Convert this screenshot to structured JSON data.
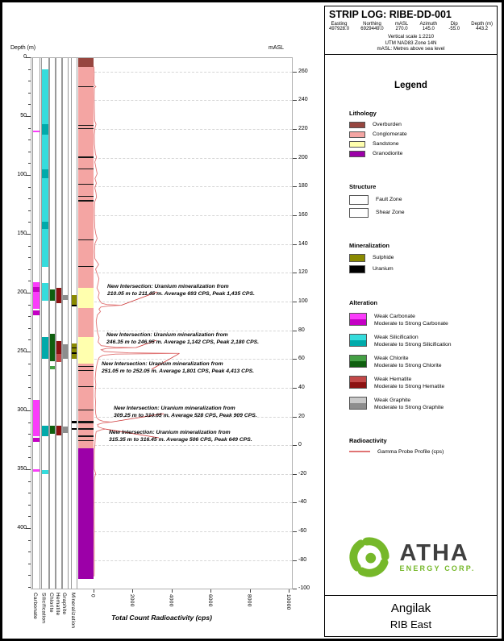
{
  "header": {
    "title": "STRIP LOG: RIBE-DD-001",
    "fields": [
      {
        "label": "Easting",
        "value": "497928.0"
      },
      {
        "label": "Northing",
        "value": "6929449.0"
      },
      {
        "label": "mASL",
        "value": "270.0"
      },
      {
        "label": "Azimuth",
        "value": "145.0"
      },
      {
        "label": "Dip",
        "value": "-55.0"
      },
      {
        "label": "Depth (m)",
        "value": "443.2"
      }
    ],
    "notes": [
      "Vertical scale 1:2210",
      "UTM NAD83 Zone 14N",
      "mASL: Metres above sea level"
    ]
  },
  "legend": {
    "title": "Legend",
    "lithology": {
      "heading": "Lithology",
      "items": [
        {
          "label": "Overburden",
          "color": "#97463f"
        },
        {
          "label": "Conglomerate",
          "color": "#f4a5a3"
        },
        {
          "label": "Sandstone",
          "color": "#ffffae"
        },
        {
          "label": "Granodiorite",
          "color": "#9c00a8"
        }
      ]
    },
    "structure": {
      "heading": "Structure",
      "items": [
        {
          "label": "Fault Zone",
          "pattern": "hatch"
        },
        {
          "label": "Shear Zone",
          "pattern": "dots"
        }
      ]
    },
    "mineralization": {
      "heading": "Mineralization",
      "items": [
        {
          "label": "Sulphide",
          "color": "#8a8a00"
        },
        {
          "label": "Uranium",
          "color": "#000000"
        }
      ]
    },
    "alteration": {
      "heading": "Alteration",
      "items": [
        {
          "weak_label": "Weak Carbonate",
          "strong_label": "Moderate to Strong Carbonate",
          "weak_color": "#fa3cfa",
          "strong_color": "#c400c4"
        },
        {
          "weak_label": "Weak Silicification",
          "strong_label": "Moderate to Strong Silicification",
          "weak_color": "#35dcdc",
          "strong_color": "#00aaaa"
        },
        {
          "weak_label": "Weak Chlorite",
          "strong_label": "Moderate to Strong Chlorite",
          "weak_color": "#44a044",
          "strong_color": "#0f5f0f"
        },
        {
          "weak_label": "Weak Hematite",
          "strong_label": "Moderate to Strong Hematite",
          "weak_color": "#c24848",
          "strong_color": "#8c1212"
        },
        {
          "weak_label": "Weak Graphite",
          "strong_label": "Moderate to Strong Graphite",
          "weak_color": "#c9c9c9",
          "strong_color": "#8d8d8d"
        }
      ]
    },
    "radioactivity": {
      "heading": "Radioactivity",
      "items": [
        {
          "label": "Gamma Probe Profile (cps)",
          "color": "#e07474"
        }
      ]
    }
  },
  "branding": {
    "name": "ATHA",
    "subtitle": "ENERGY CORP.",
    "logo_color": "#76b82a"
  },
  "footer": {
    "project": "Angilak",
    "area": "RIB East"
  },
  "chart_data": {
    "type": "line",
    "subtype": "strip-log",
    "xlabel": "Total Count Radioactivity (cps)",
    "x_ticks": [
      0,
      2000,
      4000,
      6000,
      8000,
      10000
    ],
    "x_range": [
      0,
      10000
    ],
    "depth_axis": {
      "label": "Depth (m)",
      "ticks": [
        0,
        50,
        100,
        150,
        200,
        250,
        300,
        350,
        400
      ],
      "hole_depth": 443.2
    },
    "masl_axis": {
      "label": "mASL",
      "ticks": [
        260,
        240,
        220,
        200,
        180,
        160,
        140,
        120,
        100,
        80,
        60,
        40,
        20,
        0,
        -20,
        -40,
        -60,
        -80,
        -100
      ],
      "collar_masl": 270,
      "masl_per_metre": 0.8192
    },
    "columns": [
      "Carbonate",
      "Silicification",
      "Chlorite",
      "Hematite",
      "Graphite",
      "Mineralization"
    ],
    "colors": {
      "overburden": "#97463f",
      "conglomerate": "#f4a5a3",
      "sandstone": "#ffffae",
      "granodiorite": "#9c00a8",
      "sulphide": "#8a8a00",
      "uranium": "#000000",
      "carbonate_weak": "#fa3cfa",
      "carbonate_mod": "#c400c4",
      "silicification_weak": "#35dcdc",
      "silicification_mod": "#00aaaa",
      "chlorite_weak": "#44a044",
      "chlorite_mod": "#0f5f0f",
      "hematite_weak": "#c24848",
      "hematite_mod": "#8c1212",
      "graphite_weak": "#c9c9c9",
      "graphite_mod": "#8d8d8d",
      "gamma": "#e07474",
      "leader": "#cc3333"
    },
    "lithology_intervals": [
      {
        "from": 0,
        "to": 8,
        "unit": "Overburden"
      },
      {
        "from": 8,
        "to": 196,
        "unit": "Conglomerate"
      },
      {
        "from": 196,
        "to": 213,
        "unit": "Sandstone",
        "sheared": true
      },
      {
        "from": 213,
        "to": 238,
        "unit": "Conglomerate"
      },
      {
        "from": 238,
        "to": 260,
        "unit": "Sandstone",
        "sheared": true
      },
      {
        "from": 260,
        "to": 332,
        "unit": "Conglomerate"
      },
      {
        "from": 332,
        "to": 443.2,
        "unit": "Granodiorite"
      }
    ],
    "dark_beds": [
      [
        24.5,
        25.3
      ],
      [
        57.5,
        58.3
      ],
      [
        60.5,
        61.3
      ],
      [
        84.5,
        85.3
      ],
      [
        94.5,
        95.3
      ],
      [
        107.5,
        108.3
      ],
      [
        117.5,
        118.3
      ],
      [
        121.5,
        122.3
      ],
      [
        154.5,
        155.3
      ],
      [
        177.5,
        178.3
      ],
      [
        262.5,
        263.3
      ],
      [
        265.5,
        266.3
      ],
      [
        279.5,
        280.3
      ],
      [
        299.5,
        300.3
      ],
      [
        308.9,
        311
      ],
      [
        315.3,
        316.6
      ],
      [
        321.5,
        322.3
      ],
      [
        325.5,
        326.3
      ]
    ],
    "alteration": {
      "carbonate": [
        {
          "from": 62,
          "to": 64,
          "level": "weak"
        },
        {
          "from": 191,
          "to": 214,
          "level": "weak"
        },
        {
          "from": 195,
          "to": 199,
          "level": "mod"
        },
        {
          "from": 215,
          "to": 219,
          "level": "mod"
        },
        {
          "from": 291,
          "to": 322,
          "level": "weak"
        },
        {
          "from": 323,
          "to": 327,
          "level": "mod"
        },
        {
          "from": 350,
          "to": 352,
          "level": "weak"
        }
      ],
      "silicification": [
        {
          "from": 10,
          "to": 178,
          "level": "weak"
        },
        {
          "from": 57,
          "to": 66,
          "level": "mod"
        },
        {
          "from": 95,
          "to": 103,
          "level": "mod"
        },
        {
          "from": 140,
          "to": 146,
          "level": "mod"
        },
        {
          "from": 192,
          "to": 207,
          "level": "weak"
        },
        {
          "from": 238,
          "to": 256,
          "level": "mod"
        },
        {
          "from": 313,
          "to": 322,
          "level": "mod"
        },
        {
          "from": 351,
          "to": 354,
          "level": "weak"
        }
      ],
      "chlorite": [
        {
          "from": 197,
          "to": 207,
          "level": "mod"
        },
        {
          "from": 235,
          "to": 258,
          "level": "mod"
        },
        {
          "from": 262,
          "to": 265,
          "level": "weak"
        },
        {
          "from": 313,
          "to": 320,
          "level": "mod"
        }
      ],
      "hematite": [
        {
          "from": 196,
          "to": 209,
          "level": "mod"
        },
        {
          "from": 241,
          "to": 252,
          "level": "mod"
        },
        {
          "from": 252,
          "to": 259,
          "level": "weak"
        },
        {
          "from": 313,
          "to": 321,
          "level": "mod"
        }
      ],
      "graphite": [
        {
          "from": 202,
          "to": 206,
          "level": "mod"
        },
        {
          "from": 244,
          "to": 256,
          "level": "mod"
        },
        {
          "from": 314,
          "to": 319,
          "level": "mod"
        }
      ]
    },
    "mineralization_intervals": [
      {
        "from": 202,
        "to": 210,
        "type": "sulphide"
      },
      {
        "from": 210,
        "to": 211.5,
        "type": "uranium"
      },
      {
        "from": 243,
        "to": 246.3,
        "type": "sulphide"
      },
      {
        "from": 246.3,
        "to": 247,
        "type": "uranium"
      },
      {
        "from": 247,
        "to": 251,
        "type": "sulphide"
      },
      {
        "from": 251,
        "to": 252.1,
        "type": "uranium"
      },
      {
        "from": 252.1,
        "to": 256,
        "type": "sulphide"
      },
      {
        "from": 309.2,
        "to": 310.7,
        "type": "uranium"
      },
      {
        "from": 315.3,
        "to": 316.5,
        "type": "uranium"
      }
    ],
    "gamma_profile": [
      [
        8,
        40
      ],
      [
        14,
        55
      ],
      [
        20,
        45
      ],
      [
        24,
        60
      ],
      [
        25,
        140
      ],
      [
        26,
        60
      ],
      [
        34,
        52
      ],
      [
        44,
        62
      ],
      [
        54,
        78
      ],
      [
        57,
        150
      ],
      [
        60,
        95
      ],
      [
        66,
        58
      ],
      [
        74,
        66
      ],
      [
        82,
        115
      ],
      [
        85,
        175
      ],
      [
        89,
        85
      ],
      [
        94,
        145
      ],
      [
        99,
        205
      ],
      [
        103,
        95
      ],
      [
        107,
        165
      ],
      [
        111,
        85
      ],
      [
        115,
        145
      ],
      [
        119,
        175
      ],
      [
        123,
        75
      ],
      [
        130,
        62
      ],
      [
        138,
        72
      ],
      [
        145,
        88
      ],
      [
        150,
        135
      ],
      [
        154,
        205
      ],
      [
        158,
        95
      ],
      [
        165,
        72
      ],
      [
        171,
        85
      ],
      [
        176,
        285
      ],
      [
        180,
        125
      ],
      [
        184,
        205
      ],
      [
        188,
        295
      ],
      [
        192,
        255
      ],
      [
        196,
        195
      ],
      [
        200,
        315
      ],
      [
        204,
        255
      ],
      [
        207,
        345
      ],
      [
        209,
        440
      ],
      [
        210.1,
        693
      ],
      [
        210.7,
        1435
      ],
      [
        211.4,
        780
      ],
      [
        212.2,
        390
      ],
      [
        214,
        295
      ],
      [
        216,
        375
      ],
      [
        219,
        215
      ],
      [
        224,
        155
      ],
      [
        229,
        185
      ],
      [
        234,
        225
      ],
      [
        238,
        305
      ],
      [
        242,
        255
      ],
      [
        245,
        410
      ],
      [
        246.4,
        1142
      ],
      [
        246.7,
        2180
      ],
      [
        247.3,
        690
      ],
      [
        248.5,
        410
      ],
      [
        250,
        590
      ],
      [
        251.1,
        1801
      ],
      [
        251.6,
        4413
      ],
      [
        252.2,
        1150
      ],
      [
        253.2,
        490
      ],
      [
        255,
        315
      ],
      [
        257,
        255
      ],
      [
        260,
        205
      ],
      [
        264,
        155
      ],
      [
        268,
        128
      ],
      [
        273,
        108
      ],
      [
        278,
        138
      ],
      [
        283,
        112
      ],
      [
        288,
        103
      ],
      [
        293,
        122
      ],
      [
        298,
        112
      ],
      [
        303,
        132
      ],
      [
        306,
        178
      ],
      [
        308,
        295
      ],
      [
        309.3,
        528
      ],
      [
        309.9,
        909
      ],
      [
        310.7,
        510
      ],
      [
        312,
        225
      ],
      [
        314,
        255
      ],
      [
        315.4,
        506
      ],
      [
        315.9,
        649
      ],
      [
        316.5,
        410
      ],
      [
        318,
        155
      ],
      [
        321,
        122
      ],
      [
        325,
        102
      ],
      [
        329,
        92
      ],
      [
        333,
        68
      ],
      [
        338,
        58
      ],
      [
        344,
        56
      ],
      [
        350,
        63
      ],
      [
        354,
        128
      ],
      [
        357,
        72
      ],
      [
        363,
        58
      ],
      [
        370,
        60
      ],
      [
        378,
        55
      ],
      [
        386,
        60
      ],
      [
        394,
        55
      ],
      [
        402,
        60
      ],
      [
        410,
        55
      ],
      [
        418,
        60
      ],
      [
        426,
        56
      ],
      [
        434,
        60
      ],
      [
        441,
        54
      ]
    ],
    "annotations": [
      {
        "depth": 210.7,
        "peak_cps": 1435,
        "line1": "New Intersection: Uranium mineralization from",
        "line2": "210.05 m to 211.45 m. Average 693 CPS, Peak 1,435 CPS.",
        "tx": 122,
        "ty": 345
      },
      {
        "depth": 246.7,
        "peak_cps": 2180,
        "line1": "New Intersection: Uranium mineralization from",
        "line2": "246.35 m to 246.95 m. Average 1,142 CPS, Peak 2,180 CPS.",
        "tx": 121,
        "ty": 405
      },
      {
        "depth": 251.6,
        "peak_cps": 4413,
        "line1": "New Intersection: Uranium mineralization from",
        "line2": "251.05 m to 252.05 m. Average 1,801 CPS, Peak 4,413 CPS.",
        "tx": 115,
        "ty": 441
      },
      {
        "depth": 309.9,
        "peak_cps": 909,
        "line1": "New Intersection: Uranium mineralization from",
        "line2": "309.25 m to 310.65 m. Average 528 CPS, Peak 909 CPS.",
        "tx": 130,
        "ty": 496
      },
      {
        "depth": 315.9,
        "peak_cps": 649,
        "line1": "New Intersection: Uranium mineralization from",
        "line2": "315.35 m to 316.45 m. Average 506 CPS, Peak 649 CPS.",
        "tx": 124,
        "ty": 526
      }
    ]
  }
}
